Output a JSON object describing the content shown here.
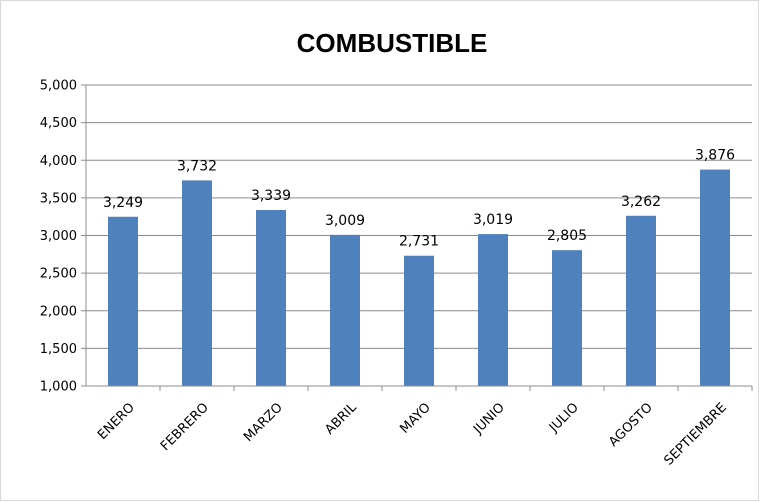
{
  "chart_data": {
    "type": "bar",
    "title": "COMBUSTIBLE",
    "xlabel": "",
    "ylabel": "",
    "categories": [
      "ENERO",
      "FEBRERO",
      "MARZO",
      "ABRIL",
      "MAYO",
      "JUNIO",
      "JULIO",
      "AGOSTO",
      "SEPTIEMBRE"
    ],
    "values": [
      3249,
      3732,
      3339,
      3009,
      2731,
      3019,
      2805,
      3262,
      3876
    ],
    "value_labels": [
      "3,249",
      "3,732",
      "3,339",
      "3,009",
      "2,731",
      "3,019",
      "2,805",
      "3,262",
      "3,876"
    ],
    "ylim": [
      1000,
      5000
    ],
    "yticks": [
      1000,
      1500,
      2000,
      2500,
      3000,
      3500,
      4000,
      4500,
      5000
    ],
    "ytick_labels": [
      "1,000",
      "1,500",
      "2,000",
      "2,500",
      "3,000",
      "3,500",
      "4,000",
      "4,500",
      "5,000"
    ],
    "grid": true,
    "bar_color": "#4f81bd"
  }
}
